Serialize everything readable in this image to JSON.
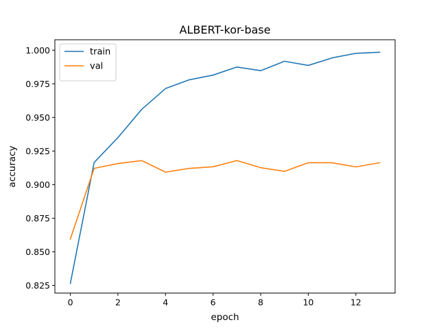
{
  "chart_data": {
    "type": "line",
    "title": "ALBERT-kor-base",
    "xlabel": "epoch",
    "ylabel": "accuracy",
    "x": [
      0,
      1,
      2,
      3,
      4,
      5,
      6,
      7,
      8,
      9,
      10,
      11,
      12,
      13
    ],
    "xlim": [
      -0.65,
      13.65
    ],
    "ylim": [
      0.8193,
      1.0078
    ],
    "xticks": [
      0,
      2,
      4,
      6,
      8,
      10,
      12
    ],
    "xtick_labels": [
      "0",
      "2",
      "4",
      "6",
      "8",
      "10",
      "12"
    ],
    "yticks": [
      0.825,
      0.85,
      0.875,
      0.9,
      0.925,
      0.95,
      0.975,
      1.0
    ],
    "ytick_labels": [
      "0.825",
      "0.850",
      "0.875",
      "0.900",
      "0.925",
      "0.950",
      "0.975",
      "1.000"
    ],
    "grid": false,
    "legend_position": "top-left",
    "series": [
      {
        "name": "train",
        "color": "#1f77b4",
        "values": [
          0.8265,
          0.9165,
          0.935,
          0.956,
          0.9715,
          0.978,
          0.9815,
          0.9875,
          0.9848,
          0.9918,
          0.9887,
          0.9943,
          0.9977,
          0.9985
        ]
      },
      {
        "name": "val",
        "color": "#ff7f0e",
        "values": [
          0.8595,
          0.9121,
          0.9157,
          0.9179,
          0.9093,
          0.9121,
          0.9133,
          0.9179,
          0.9126,
          0.9099,
          0.9163,
          0.9163,
          0.9132,
          0.9163
        ]
      }
    ]
  }
}
